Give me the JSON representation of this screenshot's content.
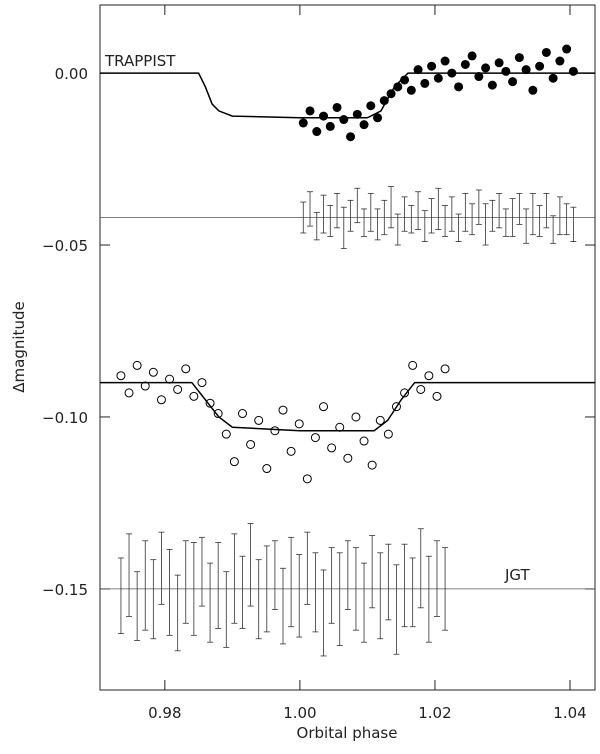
{
  "chart_data": {
    "type": "scatter",
    "x_label": "Orbital phase",
    "y_label": "Δmagnitude",
    "annotations": [
      "TRAPPIST",
      "JGT"
    ],
    "xlim": [
      0.9704,
      1.0437
    ],
    "ylim": [
      -0.1794,
      0.0198
    ],
    "xticks": [
      0.98,
      {
        "value": 1,
        "label": "1.00"
      },
      1.02,
      1.04
    ],
    "yticks": [
      {
        "value": 0,
        "label": "0.00"
      },
      {
        "value": -0.05,
        "label": "−0.05"
      },
      {
        "value": -0.1,
        "label": "−0.10"
      },
      {
        "value": -0.15,
        "label": "−0.15"
      }
    ],
    "series": [
      {
        "marker": "filled-circle",
        "color": "#000000",
        "x": [
          1.0005,
          1.0015,
          1.0025,
          1.0035,
          1.0045,
          1.0055,
          1.0065,
          1.0075,
          1.0085,
          1.0095,
          1.0105,
          1.0115,
          1.0125,
          1.0135,
          1.0145,
          1.0155,
          1.0165,
          1.0175,
          1.0185,
          1.0195,
          1.0205,
          1.0215,
          1.0225,
          1.0235,
          1.0245,
          1.0255,
          1.0265,
          1.0275,
          1.0285,
          1.0295,
          1.0305,
          1.0315,
          1.0325,
          1.0335,
          1.0345,
          1.0355,
          1.0365,
          1.0375,
          1.0385,
          1.0395,
          1.0405
        ],
        "values": [
          -0.0145,
          -0.011,
          -0.017,
          -0.0125,
          -0.0155,
          -0.01,
          -0.0135,
          -0.0185,
          -0.012,
          -0.015,
          -0.0095,
          -0.013,
          -0.008,
          -0.006,
          -0.004,
          -0.002,
          -0.005,
          0.001,
          -0.003,
          0.002,
          -0.0015,
          0.0035,
          0.0,
          -0.004,
          0.0025,
          0.005,
          -0.001,
          0.0015,
          -0.0035,
          0.003,
          0.0005,
          -0.0025,
          0.0045,
          0.001,
          -0.005,
          0.002,
          0.006,
          -0.0015,
          0.0035,
          0.007,
          0.0005
        ]
      },
      {
        "marker": "errorbar",
        "color": "#333333",
        "x": [
          1.0005,
          1.0015,
          1.0025,
          1.0035,
          1.0045,
          1.0055,
          1.0065,
          1.0075,
          1.0085,
          1.0095,
          1.0105,
          1.0115,
          1.0125,
          1.0135,
          1.0145,
          1.0155,
          1.0165,
          1.0175,
          1.0185,
          1.0195,
          1.0205,
          1.0215,
          1.0225,
          1.0235,
          1.0245,
          1.0255,
          1.0265,
          1.0275,
          1.0285,
          1.0295,
          1.0305,
          1.0315,
          1.0325,
          1.0335,
          1.0345,
          1.0355,
          1.0365,
          1.0375,
          1.0385,
          1.0395,
          1.0405
        ],
        "values": [
          -0.042,
          -0.0395,
          -0.0445,
          -0.041,
          -0.043,
          -0.04,
          -0.045,
          -0.0415,
          -0.0385,
          -0.0435,
          -0.0405,
          -0.044,
          -0.042,
          -0.039,
          -0.0455,
          -0.041,
          -0.0425,
          -0.04,
          -0.0445,
          -0.0415,
          -0.0395,
          -0.043,
          -0.041,
          -0.045,
          -0.0405,
          -0.0425,
          -0.039,
          -0.044,
          -0.0415,
          -0.04,
          -0.0435,
          -0.042,
          -0.0395,
          -0.0445,
          -0.041,
          -0.043,
          -0.04,
          -0.0455,
          -0.0415,
          -0.0425,
          -0.044
        ],
        "errors": [
          0.0045,
          0.005,
          0.004,
          0.0055,
          0.0045,
          0.005,
          0.006,
          0.0045,
          0.005,
          0.004,
          0.0055,
          0.0045,
          0.005,
          0.006,
          0.0045,
          0.005,
          0.004,
          0.0055,
          0.0045,
          0.005,
          0.006,
          0.0045,
          0.005,
          0.004,
          0.0055,
          0.0045,
          0.005,
          0.006,
          0.0045,
          0.005,
          0.004,
          0.0055,
          0.0045,
          0.005,
          0.006,
          0.0045,
          0.005,
          0.004,
          0.0055,
          0.0045,
          0.005
        ]
      },
      {
        "marker": "open-circle",
        "color": "#000000",
        "x": [
          0.9735,
          0.9747,
          0.9759,
          0.9771,
          0.9783,
          0.9795,
          0.9807,
          0.9819,
          0.9831,
          0.9843,
          0.9855,
          0.9867,
          0.9879,
          0.9891,
          0.9903,
          0.9915,
          0.9927,
          0.9939,
          0.9951,
          0.9963,
          0.9975,
          0.9987,
          0.9999,
          1.0011,
          1.0023,
          1.0035,
          1.0047,
          1.0059,
          1.0071,
          1.0083,
          1.0095,
          1.0107,
          1.0119,
          1.0131,
          1.0143,
          1.0155,
          1.0167,
          1.0179,
          1.0191,
          1.0203,
          1.0215
        ],
        "values": [
          -0.088,
          -0.093,
          -0.085,
          -0.091,
          -0.087,
          -0.095,
          -0.089,
          -0.092,
          -0.086,
          -0.094,
          -0.09,
          -0.096,
          -0.099,
          -0.105,
          -0.113,
          -0.099,
          -0.108,
          -0.101,
          -0.115,
          -0.104,
          -0.098,
          -0.11,
          -0.102,
          -0.118,
          -0.106,
          -0.097,
          -0.109,
          -0.103,
          -0.112,
          -0.1,
          -0.107,
          -0.114,
          -0.101,
          -0.105,
          -0.097,
          -0.093,
          -0.085,
          -0.092,
          -0.088,
          -0.094,
          -0.086
        ]
      },
      {
        "marker": "errorbar",
        "color": "#333333",
        "x": [
          0.9735,
          0.9747,
          0.9759,
          0.9771,
          0.9783,
          0.9795,
          0.9807,
          0.9819,
          0.9831,
          0.9843,
          0.9855,
          0.9867,
          0.9879,
          0.9891,
          0.9903,
          0.9915,
          0.9927,
          0.9939,
          0.9951,
          0.9963,
          0.9975,
          0.9987,
          0.9999,
          1.0011,
          1.0023,
          1.0035,
          1.0047,
          1.0059,
          1.0071,
          1.0083,
          1.0095,
          1.0107,
          1.0119,
          1.0131,
          1.0143,
          1.0155,
          1.0167,
          1.0179,
          1.0191,
          1.0203,
          1.0215
        ],
        "values": [
          -0.152,
          -0.146,
          -0.155,
          -0.149,
          -0.153,
          -0.144,
          -0.151,
          -0.157,
          -0.148,
          -0.15,
          -0.145,
          -0.154,
          -0.149,
          -0.156,
          -0.147,
          -0.151,
          -0.143,
          -0.153,
          -0.15,
          -0.146,
          -0.155,
          -0.148,
          -0.152,
          -0.144,
          -0.151,
          -0.157,
          -0.149,
          -0.153,
          -0.146,
          -0.15,
          -0.154,
          -0.145,
          -0.152,
          -0.148,
          -0.156,
          -0.149,
          -0.151,
          -0.144,
          -0.153,
          -0.147,
          -0.15
        ],
        "errors": [
          0.011,
          0.012,
          0.01,
          0.013,
          0.0115,
          0.0105,
          0.0125,
          0.011,
          0.012,
          0.0135,
          0.01,
          0.0115,
          0.0125,
          0.011,
          0.013,
          0.0105,
          0.012,
          0.0115,
          0.0125,
          0.01,
          0.011,
          0.013,
          0.012,
          0.0105,
          0.0115,
          0.0125,
          0.011,
          0.0135,
          0.01,
          0.012,
          0.0115,
          0.0105,
          0.0125,
          0.011,
          0.013,
          0.012,
          0.01,
          0.0115,
          0.0125,
          0.011,
          0.012
        ]
      }
    ],
    "lines": [
      {
        "color": "#000000",
        "x": [
          0.9704,
          0.985,
          0.986,
          0.987,
          0.988,
          0.99,
          1.0,
          1.01,
          1.012,
          1.014,
          1.016,
          1.0437
        ],
        "values": [
          0,
          0,
          -0.004,
          -0.009,
          -0.011,
          -0.0125,
          -0.013,
          -0.013,
          -0.011,
          -0.004,
          0,
          0
        ]
      },
      {
        "color": "#555555",
        "x": [
          0.9704,
          1.0437
        ],
        "values": [
          -0.042,
          -0.042
        ]
      },
      {
        "color": "#000000",
        "x": [
          0.9704,
          0.984,
          0.986,
          0.988,
          0.99,
          1.0,
          1.011,
          1.013,
          1.015,
          1.017,
          1.0437
        ],
        "values": [
          -0.09,
          -0.09,
          -0.095,
          -0.1,
          -0.103,
          -0.104,
          -0.104,
          -0.101,
          -0.095,
          -0.09,
          -0.09
        ]
      },
      {
        "color": "#555555",
        "x": [
          0.9704,
          1.0437
        ],
        "values": [
          -0.15,
          -0.15
        ]
      }
    ]
  }
}
